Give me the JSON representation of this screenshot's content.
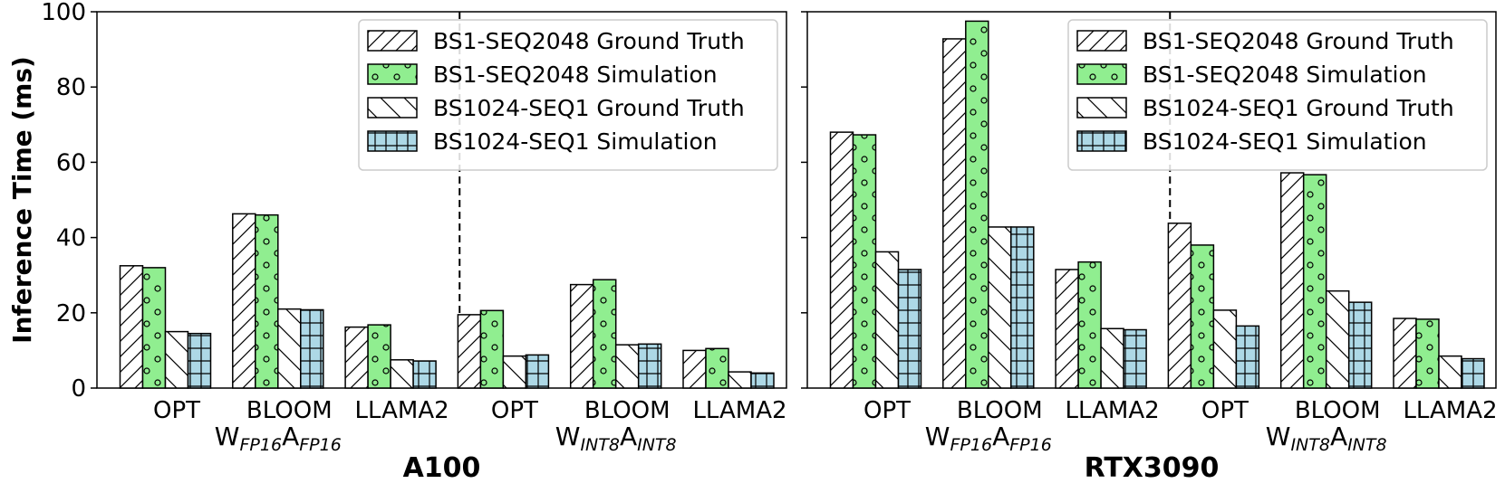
{
  "chart_data": [
    {
      "type": "bar",
      "title": "A100",
      "ylabel": "Inference Time (ms)",
      "ylim": [
        0,
        100
      ],
      "yticks": [
        0,
        20,
        40,
        60,
        80,
        100
      ],
      "categories": [
        "OPT",
        "BLOOM",
        "LLAMA2",
        "OPT",
        "BLOOM",
        "LLAMA2"
      ],
      "groups": [
        {
          "label_main_1": "W",
          "label_sub_1": "FP16",
          "label_main_2": "A",
          "label_sub_2": "FP16"
        },
        {
          "label_main_1": "W",
          "label_sub_1": "INT8",
          "label_main_2": "A",
          "label_sub_2": "INT8"
        }
      ],
      "series": [
        {
          "name": "BS1-SEQ2048 Ground Truth",
          "values": [
            32.5,
            46.3,
            16.2,
            19.5,
            27.5,
            10.0
          ]
        },
        {
          "name": "BS1-SEQ2048 Simulation",
          "values": [
            32.0,
            46.0,
            16.8,
            20.6,
            28.8,
            10.5
          ]
        },
        {
          "name": "BS1024-SEQ1 Ground Truth",
          "values": [
            15.0,
            21.0,
            7.5,
            8.5,
            11.5,
            4.3
          ]
        },
        {
          "name": "BS1024-SEQ1 Simulation",
          "values": [
            14.5,
            20.8,
            7.2,
            8.8,
            11.7,
            4.0
          ]
        }
      ],
      "legend_position": "top-right",
      "grid": false
    },
    {
      "type": "bar",
      "title": "RTX3090",
      "ylim": [
        0,
        100
      ],
      "yticks": [
        0,
        20,
        40,
        60,
        80,
        100
      ],
      "categories": [
        "OPT",
        "BLOOM",
        "LLAMA2",
        "OPT",
        "BLOOM",
        "LLAMA2"
      ],
      "groups": [
        {
          "label_main_1": "W",
          "label_sub_1": "FP16",
          "label_main_2": "A",
          "label_sub_2": "FP16"
        },
        {
          "label_main_1": "W",
          "label_sub_1": "INT8",
          "label_main_2": "A",
          "label_sub_2": "INT8"
        }
      ],
      "series": [
        {
          "name": "BS1-SEQ2048 Ground Truth",
          "values": [
            68.0,
            92.8,
            31.5,
            43.8,
            57.2,
            18.5
          ]
        },
        {
          "name": "BS1-SEQ2048 Simulation",
          "values": [
            67.3,
            97.5,
            33.5,
            38.0,
            56.7,
            18.3
          ]
        },
        {
          "name": "BS1024-SEQ1 Ground Truth",
          "values": [
            36.2,
            42.8,
            15.8,
            20.7,
            25.8,
            8.5
          ]
        },
        {
          "name": "BS1024-SEQ1 Simulation",
          "values": [
            31.5,
            42.8,
            15.5,
            16.5,
            22.8,
            7.8
          ]
        }
      ],
      "legend_position": "top-right",
      "grid": false
    }
  ],
  "series_styles": [
    {
      "fill": "#ffffff",
      "pattern": "diag-forward"
    },
    {
      "fill": "#90ee90",
      "pattern": "circles"
    },
    {
      "fill": "#ffffff",
      "pattern": "diag-back"
    },
    {
      "fill": "#add8e6",
      "pattern": "grid"
    }
  ]
}
